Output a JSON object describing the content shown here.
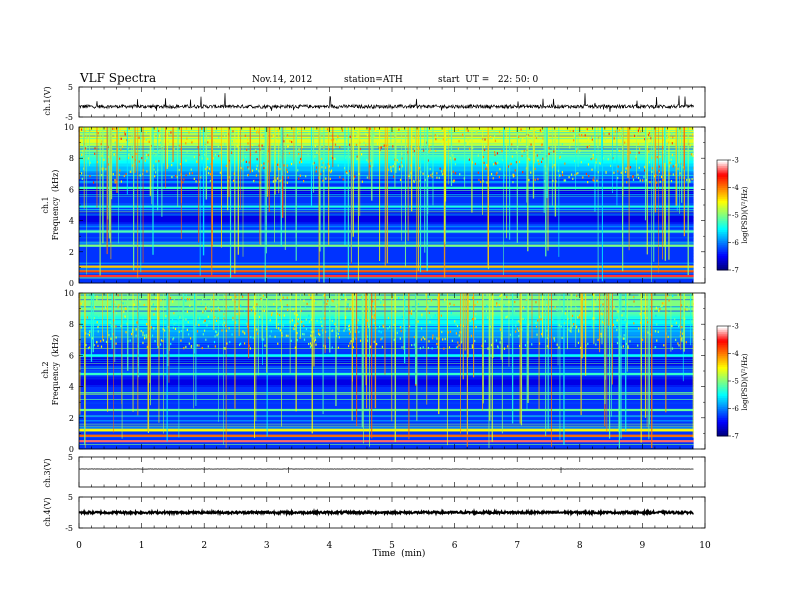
{
  "header": {
    "title": "VLF Spectra",
    "date": "Nov.14, 2012",
    "station": "station=ATH",
    "start": "start  UT =   22: 50: 0"
  },
  "chart_data": [
    {
      "type": "line",
      "name": "ch1-waveform",
      "ylabel": "ch.1(V)",
      "ylim": [
        -5,
        5
      ],
      "yticks": [
        "5",
        "-5"
      ],
      "xlim": [
        0,
        10
      ],
      "baseline_v": -1.5,
      "noise_amp_v": 0.6,
      "data_end_min": 9.82
    },
    {
      "type": "heatmap",
      "name": "ch1-spectrogram",
      "ylabel": "Frequency  (kHz)",
      "channel_label": "ch.1",
      "ylim": [
        0,
        10
      ],
      "yticks": [
        "0",
        "2",
        "4",
        "6",
        "8",
        "10"
      ],
      "xlim": [
        0,
        10
      ],
      "data_end_min": 9.82,
      "colorbar": {
        "label": "log(PSD)(V²/Hz)",
        "range": [
          -7,
          -3
        ],
        "ticks": [
          "-3",
          "-4",
          "-5",
          "-6",
          "-7"
        ]
      },
      "bands_khz": [
        {
          "f": 0.45,
          "level": -3.4
        },
        {
          "f": 0.75,
          "level": -3.8
        },
        {
          "f": 1.05,
          "level": -4.3
        },
        {
          "f": 2.4,
          "level": -5.0
        },
        {
          "f": 3.3,
          "level": -5.2
        },
        {
          "f": 4.9,
          "level": -5.4
        },
        {
          "f": 6.1,
          "level": -5.3
        }
      ],
      "band_dark_khz": [
        {
          "from": 5.4,
          "to": 6.0
        },
        {
          "from": 3.8,
          "to": 4.6
        }
      ],
      "high_freq_level": -4.6
    },
    {
      "type": "heatmap",
      "name": "ch2-spectrogram",
      "ylabel": "Frequency  (kHz)",
      "channel_label": "ch.2",
      "ylim": [
        0,
        10
      ],
      "yticks": [
        "0",
        "2",
        "4",
        "6",
        "8",
        "10"
      ],
      "xlim": [
        0,
        10
      ],
      "data_end_min": 9.82,
      "colorbar": {
        "label": "log(PSD)(V²/Hz)",
        "range": [
          -7,
          -3
        ],
        "ticks": [
          "-3",
          "-4",
          "-5",
          "-6",
          "-7"
        ]
      },
      "bands_khz": [
        {
          "f": 0.5,
          "level": -3.3
        },
        {
          "f": 0.85,
          "level": -3.9
        },
        {
          "f": 1.2,
          "level": -4.5
        },
        {
          "f": 2.5,
          "level": -5.1
        },
        {
          "f": 4.8,
          "level": -5.3
        },
        {
          "f": 6.0,
          "level": -5.5
        }
      ],
      "band_dark_khz": [
        {
          "from": 5.2,
          "to": 5.8
        },
        {
          "from": 3.9,
          "to": 4.5
        }
      ],
      "high_freq_level": -5.0
    },
    {
      "type": "line",
      "name": "ch3-waveform",
      "ylabel": "ch.3(V)",
      "ylim": [
        -5,
        5
      ],
      "yticks": [
        "5"
      ],
      "xlim": [
        0,
        10
      ],
      "baseline_v": 1.0,
      "noise_amp_v": 0.05,
      "data_end_min": 9.82
    },
    {
      "type": "line",
      "name": "ch4-waveform",
      "ylabel": "ch.4(V)",
      "ylim": [
        -5,
        5
      ],
      "yticks": [
        "5",
        "-5"
      ],
      "xlim": [
        0,
        10
      ],
      "baseline_v": 0.0,
      "noise_amp_v": 0.35,
      "data_end_min": 9.82
    }
  ],
  "x_axis": {
    "label": "Time  (min)",
    "ticks": [
      "0",
      "1",
      "2",
      "3",
      "4",
      "5",
      "6",
      "7",
      "8",
      "9",
      "10"
    ]
  },
  "colors": {
    "colormap": [
      "#000080",
      "#0000ff",
      "#0080ff",
      "#00ffff",
      "#80ff80",
      "#ffff00",
      "#ff8000",
      "#ff0000",
      "#ffffff"
    ]
  }
}
